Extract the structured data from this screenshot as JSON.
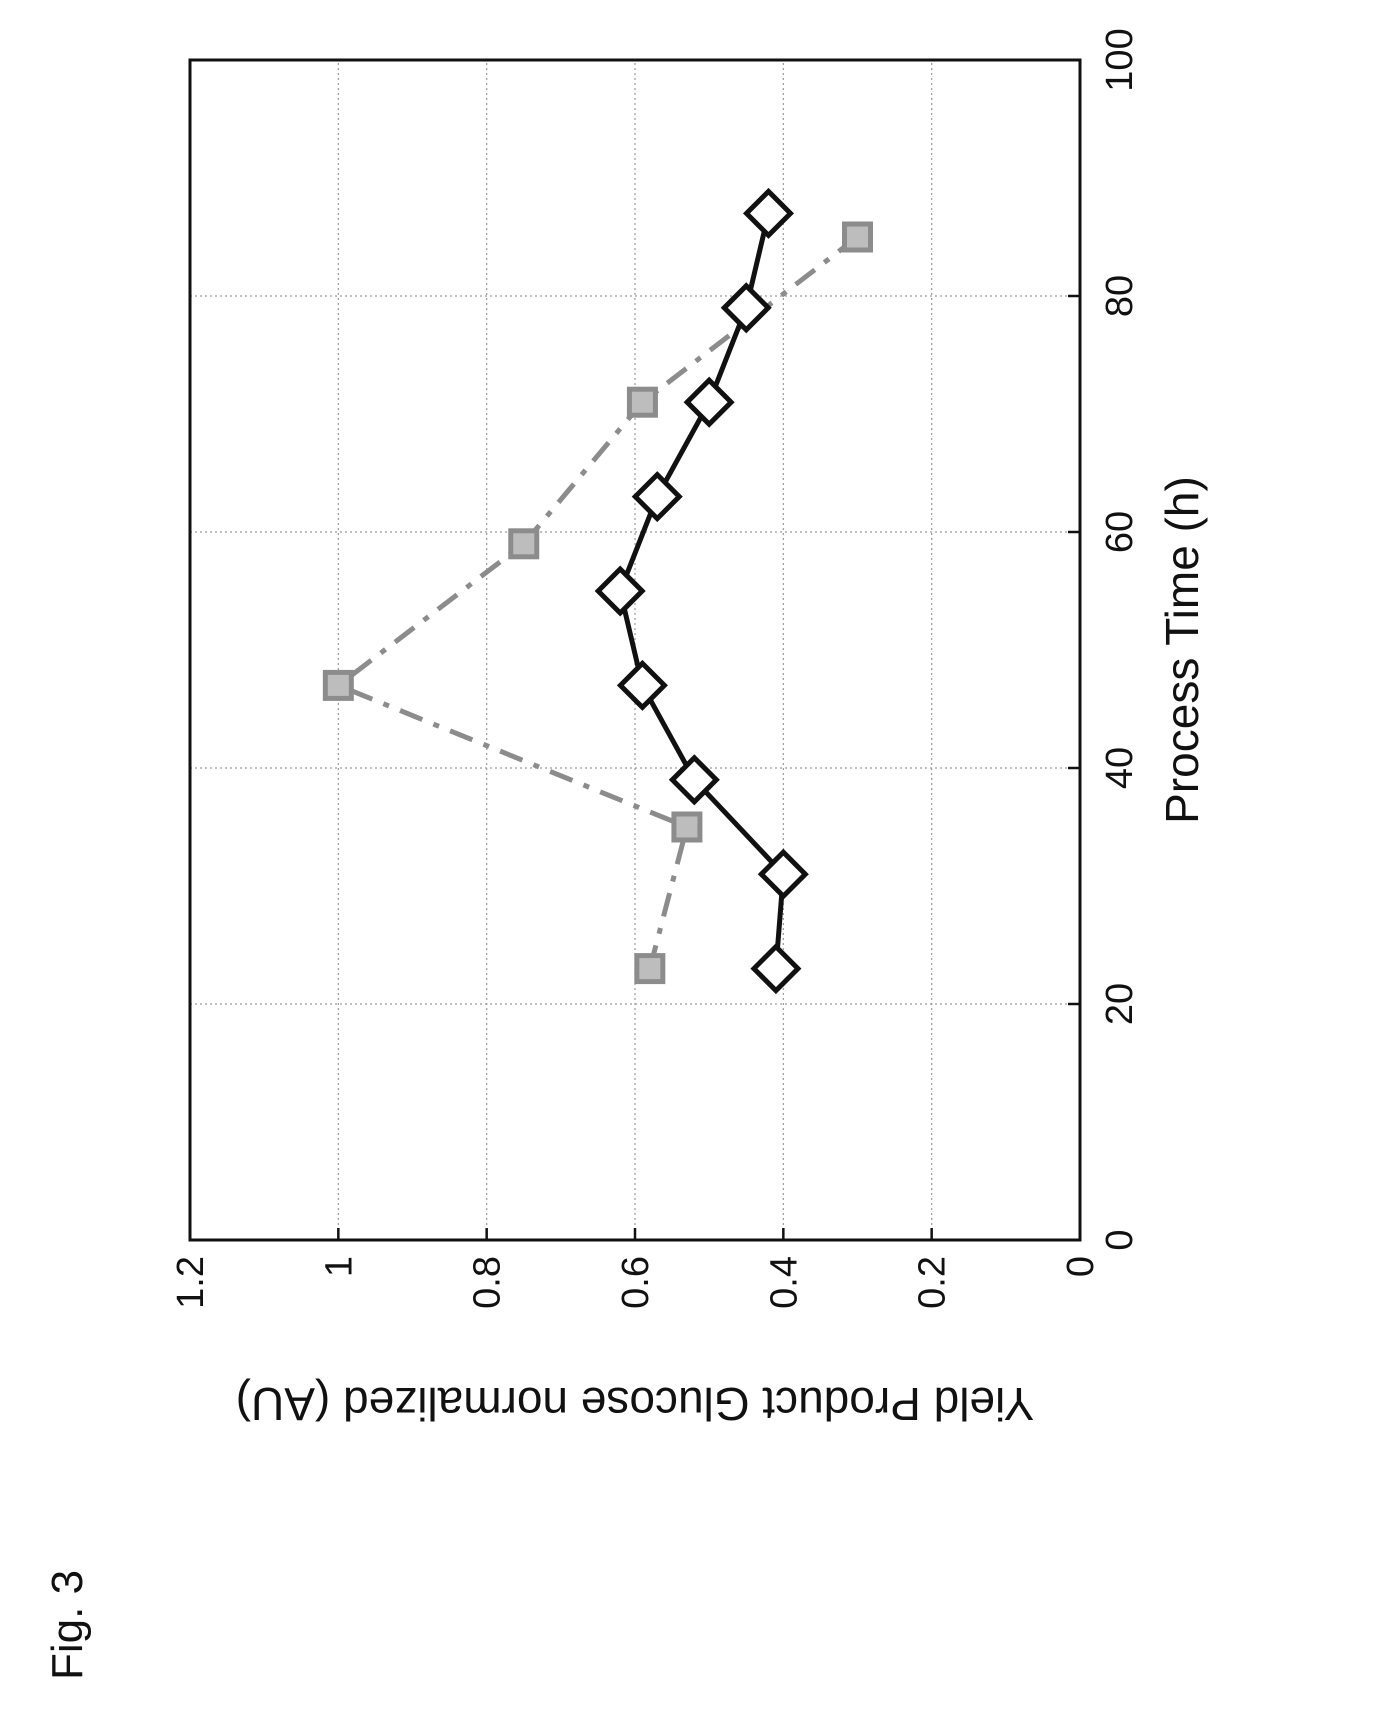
{
  "figure_label": "Fig. 3",
  "chart_data": {
    "type": "line",
    "orientation": "rotated 90° counter-clockwise on the page",
    "xlabel": "Process Time (h)",
    "ylabel": "Yield Product Glucose normalized (AU)",
    "xlim": [
      0,
      100
    ],
    "ylim": [
      0,
      1.2
    ],
    "xticks": [
      "0",
      "20",
      "40",
      "60",
      "80",
      "100"
    ],
    "yticks": [
      "0",
      "0.2",
      "0.4",
      "0.6",
      "0.8",
      "1",
      "1.2"
    ],
    "grid": true,
    "series": [
      {
        "marker": "square",
        "line": "dashed",
        "color": "#8c8c8c",
        "x": [
          23,
          35,
          47,
          59,
          71,
          85
        ],
        "y": [
          0.58,
          0.53,
          1.0,
          0.75,
          0.59,
          0.3
        ]
      },
      {
        "marker": "diamond",
        "line": "solid",
        "color": "#111111",
        "x": [
          23,
          31,
          39,
          47,
          55,
          63,
          71,
          79,
          87
        ],
        "y": [
          0.41,
          0.4,
          0.52,
          0.59,
          0.62,
          0.57,
          0.5,
          0.45,
          0.42
        ]
      }
    ]
  }
}
